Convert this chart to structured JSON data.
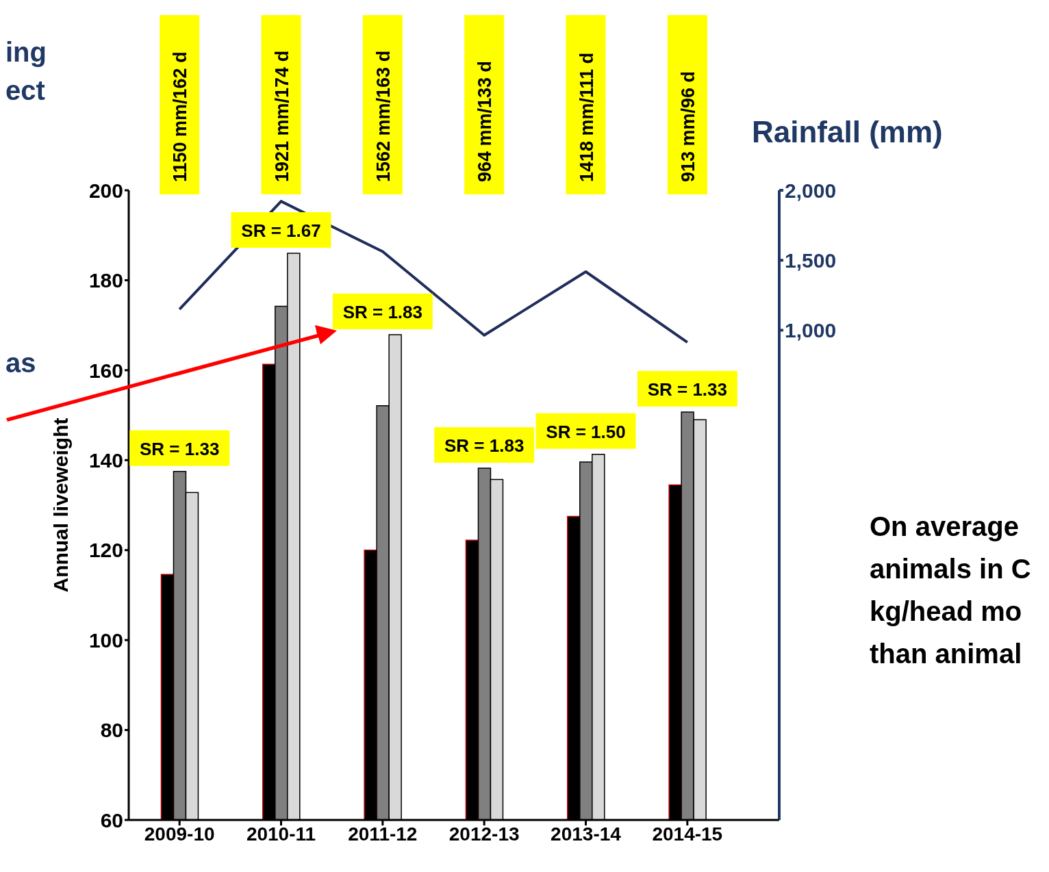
{
  "chart_data": {
    "type": "bar",
    "categories": [
      "2009-10",
      "2010-11",
      "2011-12",
      "2012-13",
      "2013-14",
      "2014-15"
    ],
    "series": [
      {
        "color": "#000000",
        "values": [
          114.6,
          161.3,
          120,
          122.2,
          127.5,
          134.5
        ]
      },
      {
        "color": "#808080",
        "values": [
          137.5,
          174.2,
          152.1,
          138.2,
          139.6,
          150.7
        ]
      },
      {
        "color": "#d9d9d9",
        "values": [
          132.8,
          186,
          167.9,
          135.7,
          141.3,
          149
        ]
      },
      {
        "type": "line",
        "axis": "y2",
        "color": "#1f2d5a",
        "values": [
          1150,
          1921,
          1562,
          964,
          1418,
          913
        ]
      }
    ],
    "ylim": [
      60,
      200
    ],
    "yticks": [
      60,
      80,
      100,
      120,
      140,
      160,
      180,
      200
    ],
    "y2lim": [
      -2500,
      2000
    ],
    "y2ticks": [
      {
        "value": 1000,
        "label": "1,000"
      },
      {
        "value": 1500,
        "label": "1,500"
      },
      {
        "value": 2000,
        "label": "2,000"
      }
    ],
    "ylabel": "Annual liveweight",
    "y2label": "Rainfall (mm)",
    "grid": false,
    "legend": false,
    "annotations": [
      "1150 mm/162 d",
      "1921 mm/174 d",
      "1562 mm/163 d",
      "964 mm/133 d",
      "1418 mm/111 d",
      "913 mm/96 d",
      "SR = 1.33",
      "SR = 1.67",
      "SR = 1.83",
      "SR = 1.83",
      "SR = 1.50",
      "SR = 1.33",
      "ing\nect",
      "as",
      "On average\nanimals in C\nkg/head mo\nthan animal"
    ]
  }
}
